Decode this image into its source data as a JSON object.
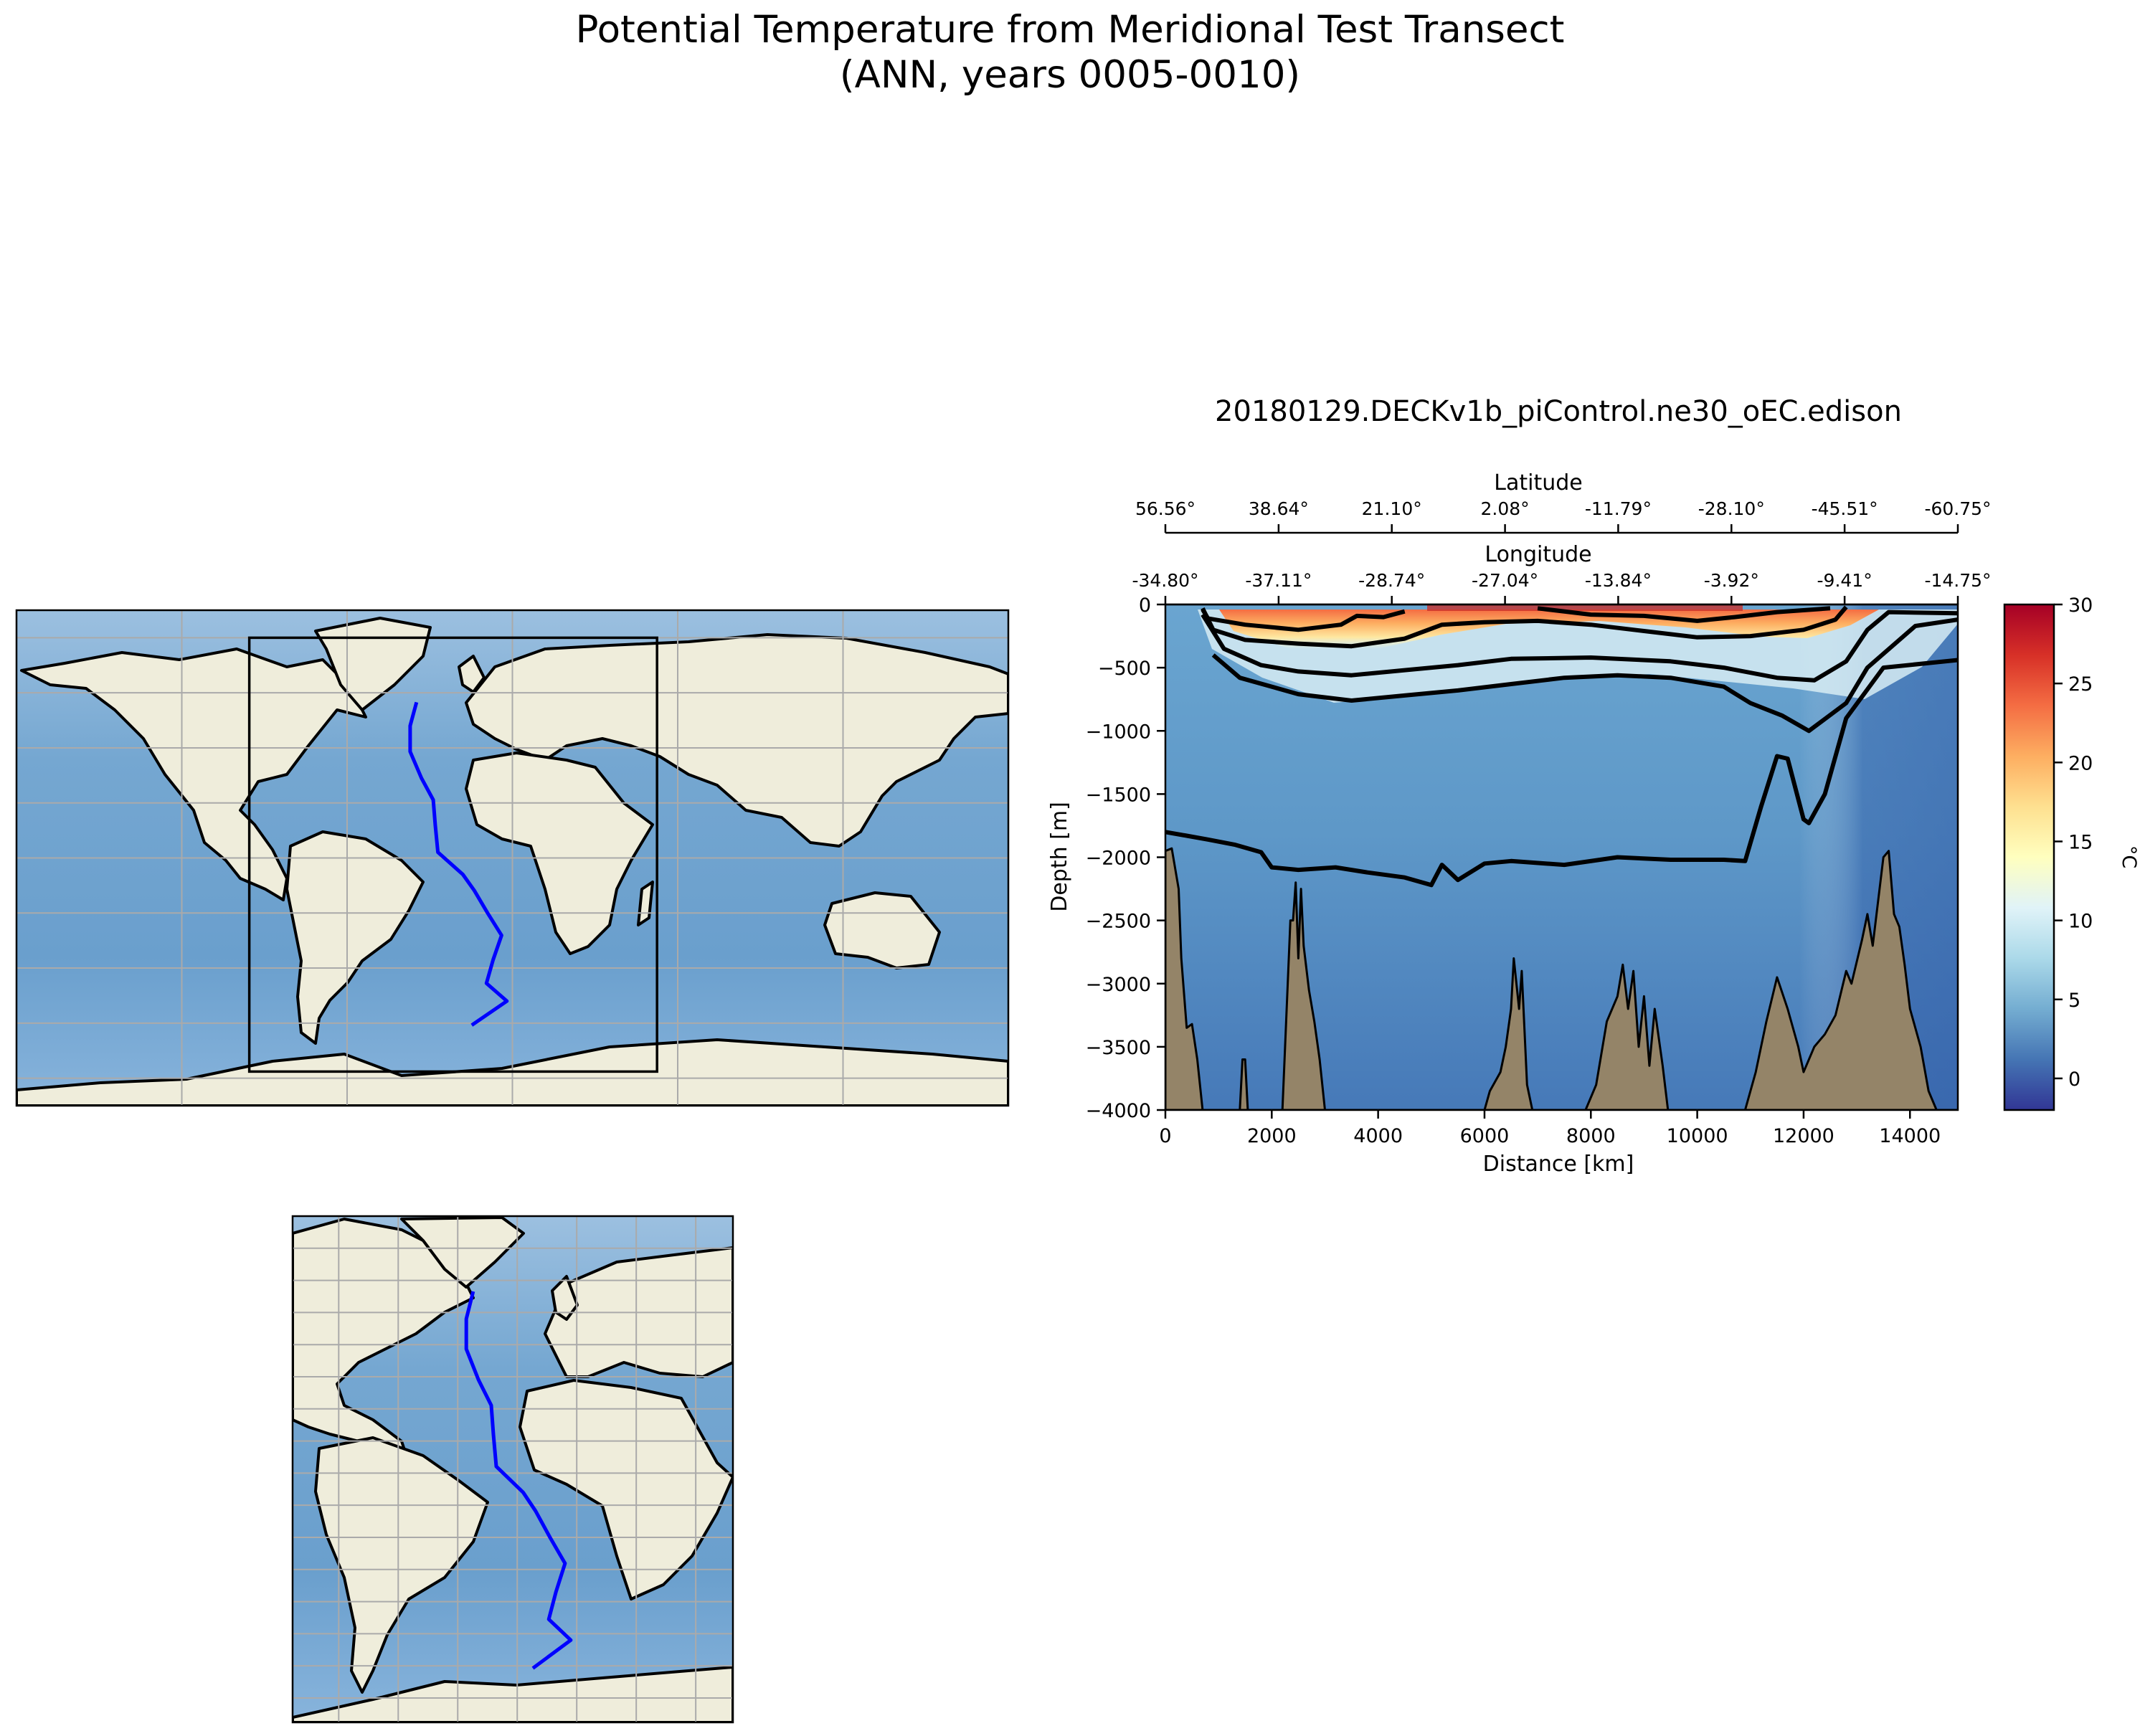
{
  "suptitle": {
    "line1": "Potential Temperature from Meridional Test Transect",
    "line2": "(ANN, years 0005-0010)"
  },
  "section": {
    "title": "20180129.DECKv1b_piControl.ne30_oEC.edison",
    "xlabel": "Distance [km]",
    "ylabel": "Depth [m]",
    "lat_axis_label": "Latitude",
    "lon_axis_label": "Longitude",
    "colorbar_label": "°C"
  },
  "colors": {
    "ocean": "#6fa3cf",
    "land": "#efeddb",
    "seafloor": "#948468",
    "transect": "#0000ff",
    "contour": "#000000"
  },
  "chart_data": [
    {
      "type": "heatmap",
      "name": "Potential temperature section",
      "xlim": [
        0,
        14900
      ],
      "ylim": [
        -4000,
        0
      ],
      "xticks": [
        0,
        2000,
        4000,
        6000,
        8000,
        10000,
        12000,
        14000
      ],
      "xtick_labels": [
        "0",
        "2000",
        "4000",
        "6000",
        "8000",
        "10000",
        "12000",
        "14000"
      ],
      "yticks": [
        0,
        -500,
        -1000,
        -1500,
        -2000,
        -2500,
        -3000,
        -3500,
        -4000
      ],
      "ytick_labels": [
        "0",
        "−500",
        "−1000",
        "−1500",
        "−2000",
        "−2500",
        "−3000",
        "−3500",
        "−4000"
      ],
      "top_axis_distances": [
        0,
        2129,
        4257,
        6386,
        8514,
        10643,
        12771,
        14900
      ],
      "latitude_labels": [
        "56.56°",
        "38.64°",
        "21.10°",
        "2.08°",
        "-11.79°",
        "-28.10°",
        "-45.51°",
        "-60.75°"
      ],
      "longitude_labels": [
        "-34.80°",
        "-37.11°",
        "-28.74°",
        "-27.04°",
        "-13.84°",
        "-3.92°",
        "-9.41°",
        "-14.75°"
      ],
      "colorbar": {
        "min": -2,
        "max": 30,
        "ticks": [
          0,
          5,
          10,
          15,
          20,
          25,
          30
        ],
        "tick_labels": [
          "0",
          "5",
          "10",
          "15",
          "20",
          "25",
          "30"
        ],
        "colormap": "RdYlBu_r"
      },
      "contours": [
        {
          "level": 20,
          "points": [
            [
              700,
              -40
            ],
            [
              800,
              -110
            ],
            [
              1500,
              -160
            ],
            [
              2500,
              -200
            ],
            [
              3300,
              -160
            ],
            [
              3600,
              -90
            ],
            [
              4100,
              -100
            ],
            [
              4500,
              -55
            ]
          ]
        },
        {
          "level": 20,
          "points": [
            [
              7000,
              -30
            ],
            [
              8000,
              -80
            ],
            [
              9000,
              -90
            ],
            [
              10000,
              -130
            ],
            [
              10700,
              -100
            ],
            [
              11500,
              -60
            ],
            [
              12500,
              -30
            ]
          ]
        },
        {
          "level": 15,
          "points": [
            [
              700,
              -30
            ],
            [
              900,
              -200
            ],
            [
              1500,
              -280
            ],
            [
              2500,
              -310
            ],
            [
              3500,
              -330
            ],
            [
              4500,
              -270
            ],
            [
              5200,
              -160
            ],
            [
              6000,
              -140
            ],
            [
              7000,
              -130
            ],
            [
              8000,
              -160
            ],
            [
              9000,
              -210
            ],
            [
              10000,
              -260
            ],
            [
              11000,
              -250
            ],
            [
              12000,
              -200
            ],
            [
              12600,
              -120
            ],
            [
              12800,
              -20
            ]
          ]
        },
        {
          "level": 10,
          "points": [
            [
              700,
              -80
            ],
            [
              1100,
              -350
            ],
            [
              1800,
              -480
            ],
            [
              2500,
              -530
            ],
            [
              3500,
              -560
            ],
            [
              4500,
              -520
            ],
            [
              5500,
              -480
            ],
            [
              6500,
              -430
            ],
            [
              8000,
              -420
            ],
            [
              9500,
              -450
            ],
            [
              10500,
              -500
            ],
            [
              11500,
              -580
            ],
            [
              12200,
              -600
            ],
            [
              12800,
              -450
            ],
            [
              13200,
              -200
            ],
            [
              13600,
              -60
            ],
            [
              14900,
              -70
            ]
          ]
        },
        {
          "level": 7,
          "points": [
            [
              900,
              -400
            ],
            [
              1400,
              -580
            ],
            [
              2500,
              -710
            ],
            [
              3500,
              -760
            ],
            [
              4500,
              -720
            ],
            [
              5500,
              -680
            ],
            [
              6500,
              -630
            ],
            [
              7500,
              -580
            ],
            [
              8500,
              -560
            ],
            [
              9500,
              -580
            ],
            [
              10500,
              -650
            ],
            [
              11000,
              -780
            ],
            [
              11600,
              -880
            ],
            [
              12100,
              -1000
            ],
            [
              12800,
              -780
            ],
            [
              13200,
              -500
            ],
            [
              14100,
              -170
            ],
            [
              14900,
              -120
            ]
          ]
        },
        {
          "level": 3,
          "points": [
            [
              0,
              -1800
            ],
            [
              400,
              -1830
            ],
            [
              800,
              -1860
            ],
            [
              1300,
              -1900
            ],
            [
              1800,
              -1960
            ],
            [
              2000,
              -2080
            ],
            [
              2500,
              -2100
            ],
            [
              3200,
              -2080
            ],
            [
              3800,
              -2120
            ],
            [
              4500,
              -2160
            ],
            [
              5000,
              -2220
            ],
            [
              5200,
              -2060
            ],
            [
              5500,
              -2180
            ],
            [
              6000,
              -2050
            ],
            [
              6500,
              -2030
            ],
            [
              7500,
              -2060
            ],
            [
              8500,
              -2000
            ],
            [
              9500,
              -2020
            ],
            [
              10500,
              -2020
            ],
            [
              10900,
              -2030
            ],
            [
              11200,
              -1600
            ],
            [
              11500,
              -1200
            ],
            [
              11700,
              -1220
            ],
            [
              12000,
              -1700
            ],
            [
              12100,
              -1730
            ],
            [
              12400,
              -1500
            ],
            [
              12800,
              -900
            ],
            [
              13500,
              -500
            ],
            [
              14900,
              -440
            ]
          ]
        }
      ],
      "bathymetry": [
        [
          0,
          -4000
        ],
        [
          0,
          -1950
        ],
        [
          120,
          -1930
        ],
        [
          250,
          -2250
        ],
        [
          300,
          -2800
        ],
        [
          400,
          -3350
        ],
        [
          500,
          -3320
        ],
        [
          600,
          -3600
        ],
        [
          700,
          -4000
        ],
        [
          1400,
          -4000
        ],
        [
          1450,
          -3600
        ],
        [
          1500,
          -3600
        ],
        [
          1550,
          -4000
        ],
        [
          2200,
          -4000
        ],
        [
          2250,
          -3500
        ],
        [
          2300,
          -3000
        ],
        [
          2350,
          -2500
        ],
        [
          2400,
          -2500
        ],
        [
          2450,
          -2200
        ],
        [
          2500,
          -2800
        ],
        [
          2550,
          -2250
        ],
        [
          2600,
          -2700
        ],
        [
          2700,
          -3050
        ],
        [
          2800,
          -3300
        ],
        [
          2900,
          -3600
        ],
        [
          3000,
          -4000
        ],
        [
          6000,
          -4000
        ],
        [
          6100,
          -3850
        ],
        [
          6300,
          -3700
        ],
        [
          6400,
          -3500
        ],
        [
          6500,
          -3200
        ],
        [
          6550,
          -2800
        ],
        [
          6650,
          -3200
        ],
        [
          6700,
          -2900
        ],
        [
          6800,
          -3800
        ],
        [
          6900,
          -4000
        ],
        [
          7900,
          -4000
        ],
        [
          8100,
          -3800
        ],
        [
          8300,
          -3300
        ],
        [
          8500,
          -3100
        ],
        [
          8600,
          -2850
        ],
        [
          8700,
          -3200
        ],
        [
          8800,
          -2900
        ],
        [
          8900,
          -3500
        ],
        [
          9000,
          -3100
        ],
        [
          9100,
          -3650
        ],
        [
          9200,
          -3200
        ],
        [
          9350,
          -3650
        ],
        [
          9450,
          -4000
        ],
        [
          10900,
          -4000
        ],
        [
          11100,
          -3700
        ],
        [
          11300,
          -3300
        ],
        [
          11500,
          -2950
        ],
        [
          11700,
          -3200
        ],
        [
          11900,
          -3500
        ],
        [
          12000,
          -3700
        ],
        [
          12200,
          -3500
        ],
        [
          12400,
          -3400
        ],
        [
          12600,
          -3250
        ],
        [
          12800,
          -2900
        ],
        [
          12900,
          -3000
        ],
        [
          13100,
          -2650
        ],
        [
          13200,
          -2450
        ],
        [
          13300,
          -2700
        ],
        [
          13500,
          -2000
        ],
        [
          13600,
          -1950
        ],
        [
          13700,
          -2450
        ],
        [
          13800,
          -2550
        ],
        [
          13900,
          -2850
        ],
        [
          14000,
          -3200
        ],
        [
          14200,
          -3500
        ],
        [
          14350,
          -3850
        ],
        [
          14500,
          -4000
        ]
      ]
    },
    {
      "type": "map",
      "name": "Global transect map",
      "projection": "PlateCarree",
      "lon_range": [
        -180,
        180
      ],
      "lat_range": [
        -90,
        90
      ],
      "inset_box": {
        "lon": [
          -95.5,
          52.5
        ],
        "lat": [
          -77.6,
          80
        ]
      },
      "transect_lonlat": [
        [
          -34.8,
          56.56
        ],
        [
          -37.11,
          48
        ],
        [
          -37.11,
          38.64
        ],
        [
          -33,
          29
        ],
        [
          -28.74,
          21.1
        ],
        [
          -28,
          12
        ],
        [
          -27.04,
          2.08
        ],
        [
          -18,
          -6
        ],
        [
          -13.84,
          -11.79
        ],
        [
          -9,
          -20
        ],
        [
          -3.92,
          -28.1
        ],
        [
          -7,
          -37
        ],
        [
          -9.41,
          -45.51
        ],
        [
          -2,
          -52
        ],
        [
          -14.75,
          -60.75
        ]
      ]
    },
    {
      "type": "map",
      "name": "Regional transect map",
      "projection": "PlateCarree",
      "lon_range": [
        -95.5,
        52.5
      ],
      "lat_range": [
        -77.6,
        80
      ],
      "transect_lonlat": [
        [
          -34.8,
          56.56
        ],
        [
          -37.11,
          48
        ],
        [
          -37.11,
          38.64
        ],
        [
          -33,
          29
        ],
        [
          -28.74,
          21.1
        ],
        [
          -28,
          12
        ],
        [
          -27.04,
          2.08
        ],
        [
          -18,
          -6
        ],
        [
          -13.84,
          -11.79
        ],
        [
          -9,
          -20
        ],
        [
          -3.92,
          -28.1
        ],
        [
          -7,
          -37
        ],
        [
          -9.41,
          -45.51
        ],
        [
          -2,
          -52
        ],
        [
          -14.75,
          -60.75
        ]
      ]
    }
  ]
}
